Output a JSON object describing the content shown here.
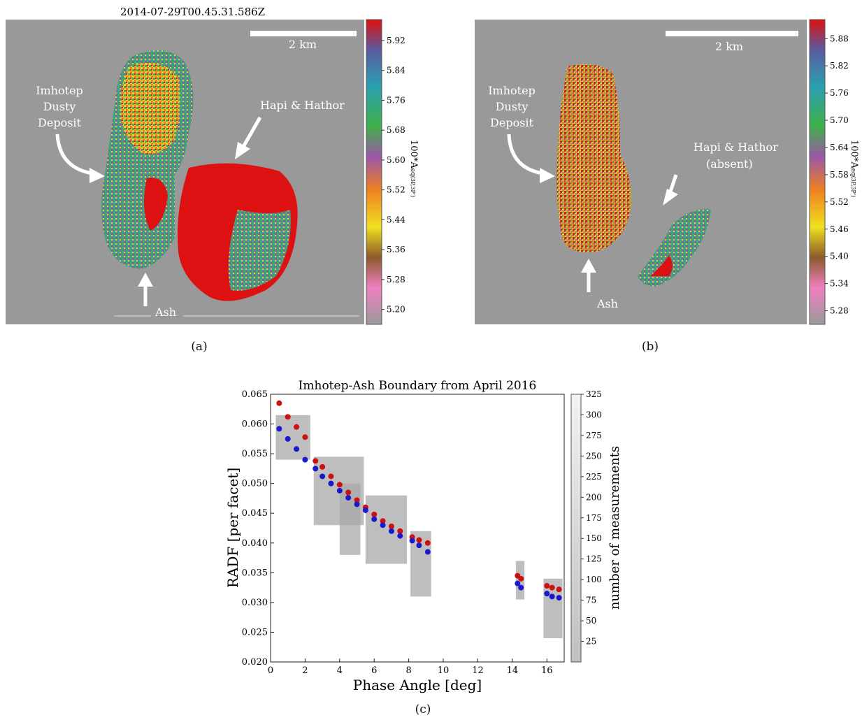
{
  "panel_a": {
    "timestamp": "2014-07-29T00.45.31.586Z",
    "scale_label": "2 km",
    "annotations": {
      "dusty_deposit": [
        "Imhotep",
        "Dusty",
        "Deposit"
      ],
      "hapi": "Hapi & Hathor",
      "ash": "Ash"
    },
    "colorbar": {
      "ticks": [
        "5.92",
        "5.84",
        "5.76",
        "5.68",
        "5.60",
        "5.52",
        "5.44",
        "5.36",
        "5.28",
        "5.20"
      ],
      "label": "100*A_eq(3P,3P')"
    },
    "caption": "(a)"
  },
  "panel_b": {
    "scale_label": "2 km",
    "annotations": {
      "dusty_deposit": [
        "Imhotep",
        "Dusty",
        "Deposit"
      ],
      "hapi": [
        "Hapi & Hathor",
        "(absent)"
      ],
      "ash": "Ash"
    },
    "colorbar": {
      "ticks": [
        "5.88",
        "5.82",
        "5.76",
        "5.70",
        "5.64",
        "5.58",
        "5.52",
        "5.46",
        "5.40",
        "5.34",
        "5.28"
      ],
      "label": "100*A_eq(3P,3P')"
    },
    "caption": "(b)"
  },
  "colors": {
    "background": "#999999",
    "red_series": "#cc1111",
    "blue_series": "#1a1acc",
    "gray_points": "#a8a8a8"
  },
  "chart_data": {
    "type": "scatter",
    "title": "Imhotep-Ash Boundary from April 2016",
    "xlabel": "Phase Angle [deg]",
    "ylabel": "RADF [per facet]",
    "xlim": [
      0,
      17
    ],
    "ylim": [
      0.02,
      0.065
    ],
    "xticks": [
      "0",
      "2",
      "4",
      "6",
      "8",
      "10",
      "12",
      "14",
      "16"
    ],
    "yticks": [
      "0.020",
      "0.025",
      "0.030",
      "0.035",
      "0.040",
      "0.045",
      "0.050",
      "0.055",
      "0.060",
      "0.065"
    ],
    "colorbar": {
      "label": "number of measurements",
      "ticks": [
        "25",
        "50",
        "75",
        "100",
        "125",
        "150",
        "175",
        "200",
        "225",
        "250",
        "275",
        "300",
        "325"
      ]
    },
    "grid": false,
    "series": [
      {
        "color": "red",
        "x": [
          0.5,
          1.0,
          1.5,
          2.0,
          2.6,
          3.0,
          3.5,
          4.0,
          4.5,
          5.0,
          5.5,
          6.0,
          6.5,
          7.0,
          7.5,
          8.2,
          8.6,
          9.1,
          14.3,
          14.5,
          16.0,
          16.3,
          16.7
        ],
        "y": [
          0.0635,
          0.0612,
          0.0595,
          0.0578,
          0.0538,
          0.0528,
          0.0512,
          0.0498,
          0.0485,
          0.0472,
          0.046,
          0.0448,
          0.0437,
          0.0428,
          0.042,
          0.041,
          0.0405,
          0.04,
          0.0345,
          0.034,
          0.0328,
          0.0325,
          0.0322
        ]
      },
      {
        "color": "blue",
        "x": [
          0.5,
          1.0,
          1.5,
          2.0,
          2.6,
          3.0,
          3.5,
          4.0,
          4.5,
          5.0,
          5.5,
          6.0,
          6.5,
          7.0,
          7.5,
          8.2,
          8.6,
          9.1,
          14.3,
          14.5,
          16.0,
          16.3,
          16.7
        ],
        "y": [
          0.0592,
          0.0575,
          0.0558,
          0.054,
          0.0525,
          0.0512,
          0.05,
          0.0488,
          0.0476,
          0.0465,
          0.0455,
          0.044,
          0.043,
          0.042,
          0.0412,
          0.0404,
          0.0396,
          0.0385,
          0.0332,
          0.0325,
          0.0315,
          0.031,
          0.0308
        ]
      }
    ],
    "measurement_clusters": [
      {
        "x": [
          0.3,
          2.3
        ],
        "y": [
          0.054,
          0.0615
        ]
      },
      {
        "x": [
          2.5,
          5.4
        ],
        "y": [
          0.043,
          0.0545
        ]
      },
      {
        "x": [
          4.0,
          5.2
        ],
        "y": [
          0.038,
          0.05
        ]
      },
      {
        "x": [
          5.5,
          7.9
        ],
        "y": [
          0.0365,
          0.048
        ]
      },
      {
        "x": [
          8.1,
          9.3
        ],
        "y": [
          0.031,
          0.042
        ]
      },
      {
        "x": [
          14.2,
          14.7
        ],
        "y": [
          0.0305,
          0.037
        ]
      },
      {
        "x": [
          15.8,
          16.9
        ],
        "y": [
          0.024,
          0.034
        ]
      }
    ],
    "caption": "(c)"
  }
}
